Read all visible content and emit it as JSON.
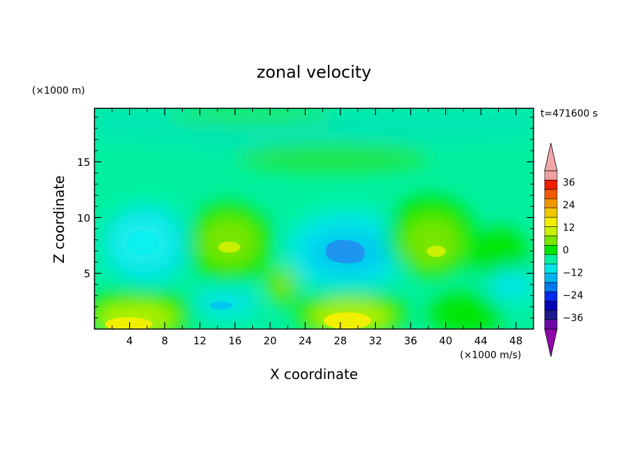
{
  "chart_data": {
    "type": "heatmap",
    "title": "zonal velocity",
    "xlabel": "X coordinate",
    "ylabel": "Z coordinate",
    "y_scale_note": "(×1000 m)",
    "x_scale_note": "(×1000 m/s)",
    "time_label": "t=471600 s",
    "xlim": [
      0,
      50
    ],
    "ylim": [
      0,
      19.8
    ],
    "x_ticks": [
      "4",
      "8",
      "12",
      "16",
      "20",
      "24",
      "28",
      "32",
      "36",
      "40",
      "44",
      "48"
    ],
    "y_ticks": [
      "5",
      "10",
      "15"
    ],
    "colorbar": {
      "levels": [
        -36,
        -30,
        -24,
        -18,
        -12,
        -6,
        0,
        6,
        12,
        18,
        24,
        30,
        36
      ],
      "tick_labels": [
        "36",
        "24",
        "12",
        "0",
        "−12",
        "−24",
        "−36"
      ],
      "colors_low_to_high": [
        "#6e0aa8",
        "#1a1a8c",
        "#0000b4",
        "#0028f0",
        "#0078f0",
        "#00b4f0",
        "#00e6e6",
        "#00f0a0",
        "#00e600",
        "#78e600",
        "#c8f000",
        "#f0f000",
        "#f0c800",
        "#f09600",
        "#f05a00",
        "#f01e00",
        "#f0a0a0"
      ],
      "under_color": "#8c0aa8",
      "over_color": "#f0a8a8"
    },
    "field_features": [
      {
        "x": 29,
        "z": 7.5,
        "value": -18
      },
      {
        "x": 6,
        "z": 8,
        "value": -10
      },
      {
        "x": 14,
        "z": 8.5,
        "value": 6
      },
      {
        "x": 22,
        "z": 4,
        "value": 5
      },
      {
        "x": 5,
        "z": 0.8,
        "value": 12
      },
      {
        "x": 29,
        "z": 1.2,
        "value": 12
      },
      {
        "x": 38,
        "z": 8.5,
        "value": 6
      },
      {
        "x": 47,
        "z": 4,
        "value": -8
      },
      {
        "x": 25,
        "z": 16.5,
        "value": 2
      }
    ]
  }
}
